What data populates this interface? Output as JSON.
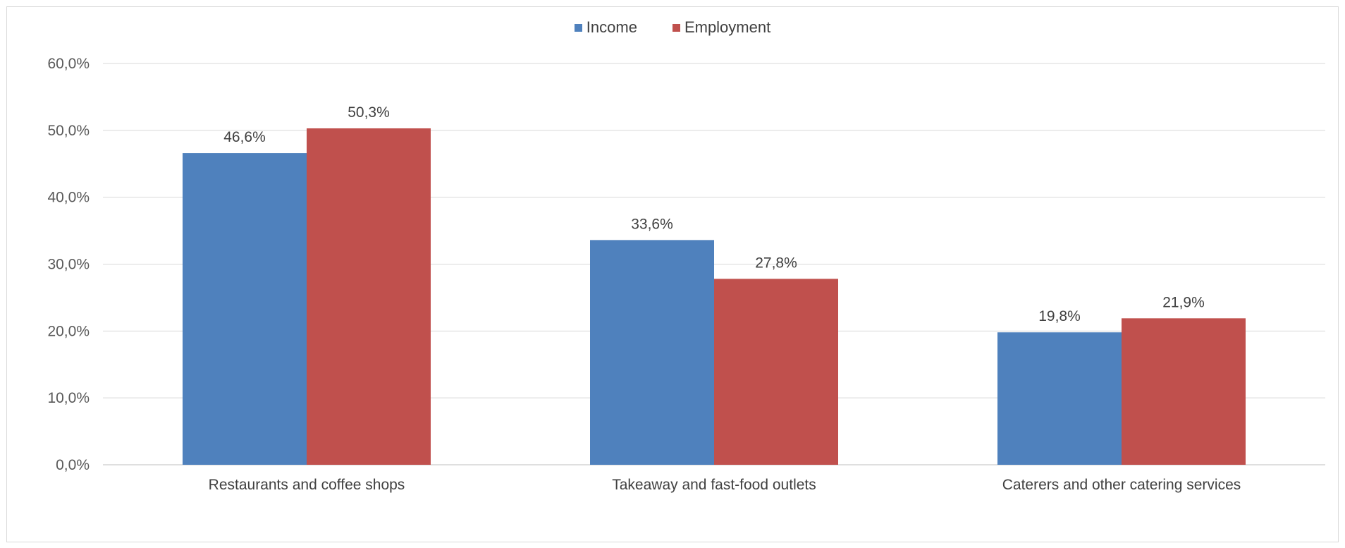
{
  "chart_data": {
    "type": "bar",
    "categories": [
      "Restaurants and coffee shops",
      "Takeaway and fast-food outlets",
      "Caterers and other catering services"
    ],
    "series": [
      {
        "name": "Income",
        "color": "#4f81bd",
        "values": [
          46.6,
          33.6,
          19.8
        ],
        "labels": [
          "46,6%",
          "33,6%",
          "19,8%"
        ]
      },
      {
        "name": "Employment",
        "color": "#c0504d",
        "values": [
          50.3,
          27.8,
          21.9
        ],
        "labels": [
          "50,3%",
          "27,8%",
          "21,9%"
        ]
      }
    ],
    "yticks": [
      "0,0%",
      "10,0%",
      "20,0%",
      "30,0%",
      "40,0%",
      "50,0%",
      "60,0%"
    ],
    "ylim": [
      0,
      60
    ],
    "grid": true,
    "legend_position": "top-center"
  }
}
